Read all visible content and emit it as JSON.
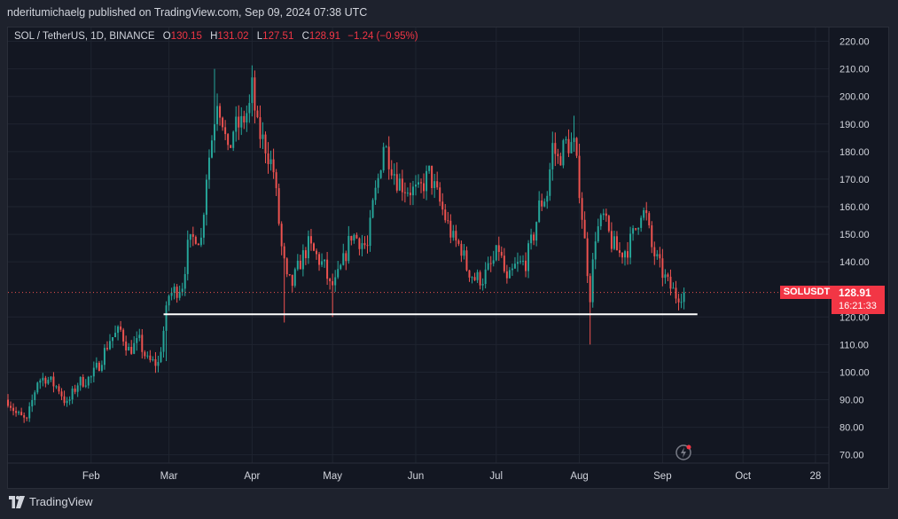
{
  "header": {
    "publisher": "nderitumichaelg published on TradingView.com, Sep 09, 2024 07:38 UTC"
  },
  "legend": {
    "symbol": "SOL / TetherUS, 1D, BINANCE",
    "o_label": "O",
    "o_value": "130.15",
    "h_label": "H",
    "h_value": "131.02",
    "l_label": "L",
    "l_value": "127.51",
    "c_label": "C",
    "c_value": "128.91",
    "change": "−1.24 (−0.95%)"
  },
  "price_tag": {
    "ticker": "SOLUSDT",
    "price": "128.91",
    "countdown": "16:21:33"
  },
  "footer": {
    "brand": "TradingView"
  },
  "colors": {
    "up": "#26a69a",
    "down": "#ef5350",
    "background": "#131722",
    "grid": "#1f2430",
    "support_line": "#ffffff"
  },
  "icons": {
    "alert": "alert-icon",
    "brand": "tradingview-logo"
  },
  "chart_data": {
    "type": "candlestick",
    "title": "SOL / TetherUS, 1D, BINANCE",
    "ylim": [
      67,
      225
    ],
    "y_ticks": [
      "220.00",
      "210.00",
      "200.00",
      "190.00",
      "180.00",
      "170.00",
      "160.00",
      "150.00",
      "140.00",
      "120.00",
      "110.00",
      "100.00",
      "90.00",
      "80.00",
      "70.00"
    ],
    "x_ticks": [
      {
        "label": "Feb",
        "date": "2024-02-01"
      },
      {
        "label": "Mar",
        "date": "2024-03-01"
      },
      {
        "label": "Apr",
        "date": "2024-04-01"
      },
      {
        "label": "May",
        "date": "2024-05-01"
      },
      {
        "label": "Jun",
        "date": "2024-06-01"
      },
      {
        "label": "Jul",
        "date": "2024-07-01"
      },
      {
        "label": "Aug",
        "date": "2024-08-01"
      },
      {
        "label": "Sep",
        "date": "2024-09-01"
      },
      {
        "label": "Oct",
        "date": "2024-10-01"
      },
      {
        "label": "28",
        "date": "2024-10-28"
      }
    ],
    "x_range": [
      "2024-01-01",
      "2024-11-02"
    ],
    "candles_start": "2024-01-01",
    "candles_end": "2024-09-09",
    "anchors": [
      [
        "2024-01-01",
        90
      ],
      [
        "2024-01-04",
        85
      ],
      [
        "2024-01-08",
        82
      ],
      [
        "2024-01-12",
        97
      ],
      [
        "2024-01-15",
        98
      ],
      [
        "2024-01-20",
        94
      ],
      [
        "2024-01-23",
        88
      ],
      [
        "2024-01-27",
        96
      ],
      [
        "2024-02-01",
        98
      ],
      [
        "2024-02-04",
        103
      ],
      [
        "2024-02-08",
        112
      ],
      [
        "2024-02-12",
        115
      ],
      [
        "2024-02-15",
        108
      ],
      [
        "2024-02-19",
        111
      ],
      [
        "2024-02-22",
        104
      ],
      [
        "2024-02-26",
        103
      ],
      [
        "2024-02-28",
        115
      ],
      [
        "2024-03-01",
        128
      ],
      [
        "2024-03-04",
        130
      ],
      [
        "2024-03-06",
        132
      ],
      [
        "2024-03-08",
        145
      ],
      [
        "2024-03-11",
        150
      ],
      [
        "2024-03-13",
        148
      ],
      [
        "2024-03-15",
        172
      ],
      [
        "2024-03-17",
        185
      ],
      [
        "2024-03-19",
        200
      ],
      [
        "2024-03-21",
        192
      ],
      [
        "2024-03-23",
        178
      ],
      [
        "2024-03-25",
        188
      ],
      [
        "2024-03-28",
        190
      ],
      [
        "2024-03-31",
        196
      ],
      [
        "2024-04-01",
        203
      ],
      [
        "2024-04-03",
        188
      ],
      [
        "2024-04-06",
        182
      ],
      [
        "2024-04-09",
        173
      ],
      [
        "2024-04-12",
        145
      ],
      [
        "2024-04-14",
        133
      ],
      [
        "2024-04-16",
        132
      ],
      [
        "2024-04-19",
        140
      ],
      [
        "2024-04-22",
        146
      ],
      [
        "2024-04-25",
        142
      ],
      [
        "2024-04-28",
        138
      ],
      [
        "2024-04-30",
        131
      ],
      [
        "2024-05-02",
        132
      ],
      [
        "2024-05-05",
        140
      ],
      [
        "2024-05-08",
        150
      ],
      [
        "2024-05-11",
        148
      ],
      [
        "2024-05-14",
        145
      ],
      [
        "2024-05-16",
        160
      ],
      [
        "2024-05-18",
        170
      ],
      [
        "2024-05-20",
        183
      ],
      [
        "2024-05-22",
        178
      ],
      [
        "2024-05-25",
        170
      ],
      [
        "2024-05-28",
        167
      ],
      [
        "2024-06-02",
        165
      ],
      [
        "2024-06-06",
        172
      ],
      [
        "2024-06-09",
        164
      ],
      [
        "2024-06-12",
        156
      ],
      [
        "2024-06-15",
        148
      ],
      [
        "2024-06-18",
        145
      ],
      [
        "2024-06-20",
        138
      ],
      [
        "2024-06-23",
        134
      ],
      [
        "2024-06-26",
        134
      ],
      [
        "2024-06-30",
        140
      ],
      [
        "2024-07-02",
        145
      ],
      [
        "2024-07-05",
        132
      ],
      [
        "2024-07-08",
        138
      ],
      [
        "2024-07-12",
        140
      ],
      [
        "2024-07-15",
        150
      ],
      [
        "2024-07-17",
        160
      ],
      [
        "2024-07-20",
        165
      ],
      [
        "2024-07-22",
        182
      ],
      [
        "2024-07-24",
        177
      ],
      [
        "2024-07-27",
        183
      ],
      [
        "2024-07-30",
        182
      ],
      [
        "2024-08-01",
        167
      ],
      [
        "2024-08-03",
        147
      ],
      [
        "2024-08-05",
        128
      ],
      [
        "2024-08-07",
        150
      ],
      [
        "2024-08-10",
        156
      ],
      [
        "2024-08-13",
        147
      ],
      [
        "2024-08-16",
        143
      ],
      [
        "2024-08-19",
        145
      ],
      [
        "2024-08-22",
        152
      ],
      [
        "2024-08-24",
        159
      ],
      [
        "2024-08-26",
        156
      ],
      [
        "2024-08-28",
        145
      ],
      [
        "2024-08-31",
        138
      ],
      [
        "2024-09-03",
        132
      ],
      [
        "2024-09-06",
        128
      ],
      [
        "2024-09-09",
        128.91
      ]
    ],
    "extremes": [
      {
        "date": "2024-03-18",
        "high": 210
      },
      {
        "date": "2024-04-13",
        "low": 118
      },
      {
        "date": "2024-05-01",
        "low": 120
      },
      {
        "date": "2024-07-30",
        "high": 193
      },
      {
        "date": "2024-08-05",
        "low": 110
      },
      {
        "date": "2024-02-29",
        "low": 104
      }
    ],
    "last_close": 128.91,
    "support_line": {
      "start": "2024-02-28",
      "end": "2024-09-14",
      "price": 121
    }
  }
}
